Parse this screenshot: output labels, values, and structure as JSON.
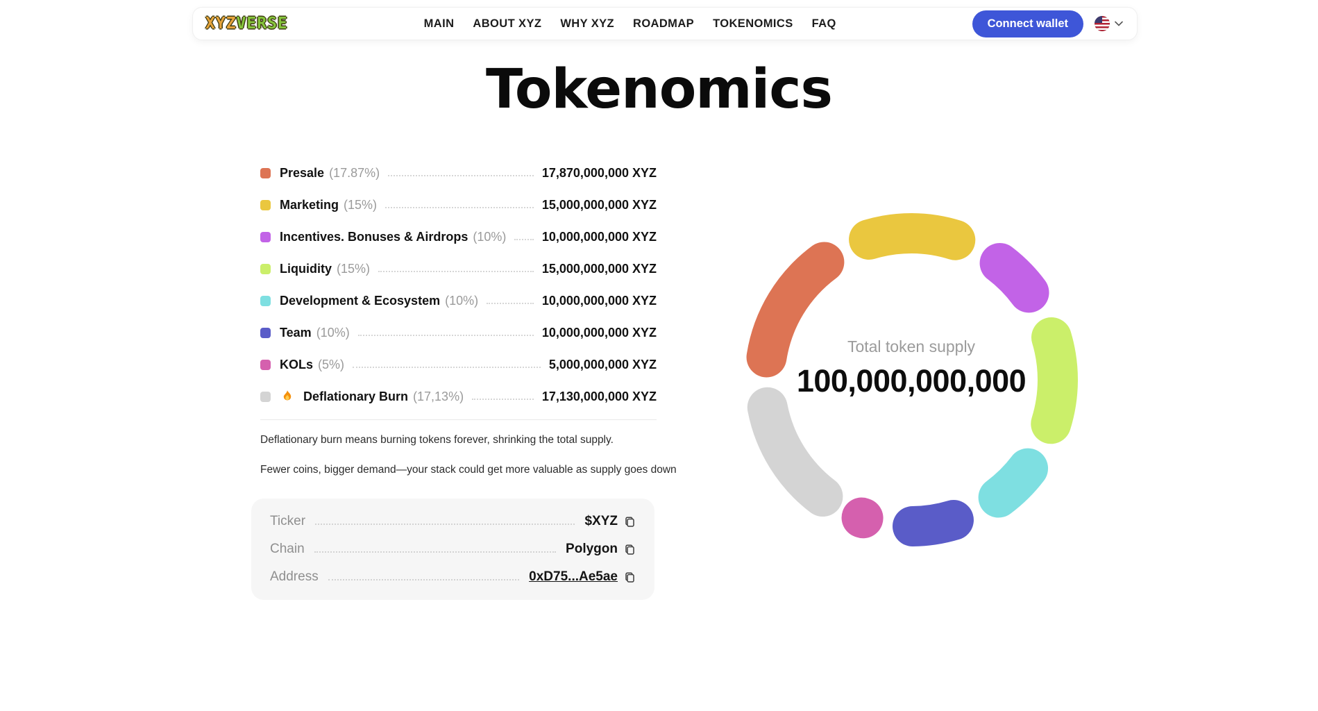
{
  "header": {
    "logo": {
      "part1": "XYZ",
      "part2": "VERSE"
    },
    "nav": [
      {
        "label": "MAIN"
      },
      {
        "label": "ABOUT XYZ"
      },
      {
        "label": "WHY XYZ"
      },
      {
        "label": "ROADMAP"
      },
      {
        "label": "TOKENOMICS"
      },
      {
        "label": "FAQ"
      }
    ],
    "connect_wallet_label": "Connect wallet",
    "language": {
      "flag_icon": "us-flag-icon",
      "chevron_icon": "chevron-down-icon"
    }
  },
  "page_title": "Tokenomics",
  "colors": {
    "accent_button": "#3E56D8",
    "presale": "#DD7454",
    "marketing": "#EAC73F",
    "incentives": "#C263E7",
    "liquidity": "#CBEF6A",
    "development": "#7EDFE1",
    "team": "#5A5CC8",
    "kols": "#D560AE",
    "burn": "#D4D4D4"
  },
  "chart_data": {
    "type": "pie",
    "subtype": "donut",
    "title": "Total token supply",
    "center_label": "Total token supply",
    "center_value": "100,000,000,000",
    "categories": [
      "Presale",
      "Marketing",
      "Incentives. Bonuses & Airdrops",
      "Liquidity",
      "Development & Ecosystem",
      "Team",
      "KOLs",
      "Deflationary Burn"
    ],
    "values": [
      17.87,
      15,
      10,
      15,
      10,
      10,
      5,
      17.13
    ],
    "token_amounts": [
      "17,870,000,000 XYZ",
      "15,000,000,000 XYZ",
      "10,000,000,000 XYZ",
      "15,000,000,000 XYZ",
      "10,000,000,000 XYZ",
      "10,000,000,000 XYZ",
      "5,000,000,000 XYZ",
      "17,130,000,000 XYZ"
    ],
    "colors": [
      "#DD7454",
      "#EAC73F",
      "#C263E7",
      "#CBEF6A",
      "#7EDFE1",
      "#5A5CC8",
      "#D560AE",
      "#D4D4D4"
    ],
    "legend_position": "left",
    "rotation_deg_cw_from_top": 269,
    "segment_gap_deg": 4
  },
  "legend": {
    "items": [
      {
        "label": "Presale",
        "pct": "(17.87%)",
        "value": "17,870,000,000 XYZ",
        "color": "#DD7454"
      },
      {
        "label": "Marketing",
        "pct": "(15%)",
        "value": "15,000,000,000 XYZ",
        "color": "#EAC73F"
      },
      {
        "label": "Incentives. Bonuses & Airdrops",
        "pct": "(10%)",
        "value": "10,000,000,000 XYZ",
        "color": "#C263E7"
      },
      {
        "label": "Liquidity",
        "pct": "(15%)",
        "value": "15,000,000,000 XYZ",
        "color": "#CBEF6A"
      },
      {
        "label": "Development & Ecosystem",
        "pct": "(10%)",
        "value": "10,000,000,000 XYZ",
        "color": "#7EDFE1"
      },
      {
        "label": "Team",
        "pct": "(10%)",
        "value": "10,000,000,000 XYZ",
        "color": "#5A5CC8"
      },
      {
        "label": "KOLs",
        "pct": "(5%)",
        "value": "5,000,000,000 XYZ",
        "color": "#D560AE"
      },
      {
        "label": "Deflationary Burn",
        "pct": "(17,13%)",
        "value": "17,130,000,000 XYZ",
        "color": "#D4D4D4",
        "icon": "flame-icon"
      }
    ]
  },
  "notes": [
    "Deflationary burn means burning tokens forever, shrinking the total supply.",
    "Fewer coins, bigger demand—your stack could get more valuable as supply goes down"
  ],
  "token_info": {
    "rows": [
      {
        "label": "Ticker",
        "value": "$XYZ",
        "is_link": false
      },
      {
        "label": "Chain",
        "value": "Polygon",
        "is_link": false
      },
      {
        "label": "Address",
        "value": "0xD75...Ae5ae",
        "is_link": true,
        "copy_icon": "copy-icon"
      }
    ]
  }
}
